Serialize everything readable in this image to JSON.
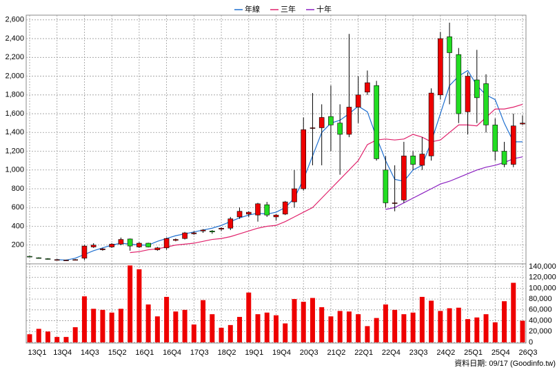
{
  "chart_data": {
    "type": "candlestick",
    "legend": [
      "年線",
      "三年",
      "十年"
    ],
    "footer": "資料日期: 09/17 (Goodinfo.tw)",
    "categories": [
      "13Q1",
      null,
      null,
      "13Q4",
      null,
      null,
      "14Q3",
      null,
      null,
      "15Q2",
      null,
      null,
      "16Q1",
      null,
      null,
      "16Q4",
      null,
      null,
      "17Q3",
      null,
      null,
      "18Q2",
      null,
      null,
      "19Q1",
      null,
      null,
      "19Q4",
      null,
      null,
      "20Q3",
      null,
      null,
      "21Q2",
      null,
      null,
      "22Q1",
      null,
      null,
      "22Q4",
      null,
      null,
      "23Q3",
      null,
      null,
      "24Q2",
      null,
      null,
      "25Q1",
      null,
      null,
      "25Q4",
      null,
      null,
      "26Q3"
    ],
    "open": [
      80,
      65,
      55,
      45,
      40,
      45,
      60,
      180,
      150,
      180,
      210,
      265,
      180,
      220,
      150,
      170,
      250,
      270,
      320,
      350,
      350,
      370,
      380,
      500,
      530,
      520,
      630,
      500,
      530,
      660,
      800,
      1450,
      1450,
      1570,
      1500,
      1380,
      1670,
      1830,
      1900,
      1000,
      650,
      680,
      1150,
      1050,
      1150,
      1800,
      2420,
      2230,
      1620,
      1960,
      1920,
      1480,
      1200,
      1060,
      1490
    ],
    "high": [
      85,
      70,
      60,
      50,
      45,
      50,
      200,
      220,
      170,
      220,
      280,
      270,
      230,
      225,
      180,
      280,
      270,
      340,
      345,
      370,
      360,
      390,
      500,
      600,
      560,
      650,
      660,
      530,
      670,
      1000,
      1560,
      1820,
      1700,
      1900,
      1700,
      2450,
      2000,
      2060,
      1950,
      1150,
      1050,
      1300,
      1200,
      1350,
      1870,
      2470,
      2570,
      2300,
      2040,
      2280,
      2020,
      1550,
      1300,
      1600,
      1580
    ],
    "low": [
      70,
      55,
      45,
      40,
      35,
      40,
      40,
      170,
      140,
      170,
      200,
      140,
      170,
      175,
      140,
      150,
      240,
      260,
      310,
      330,
      320,
      350,
      360,
      480,
      500,
      450,
      500,
      460,
      520,
      600,
      780,
      1050,
      1050,
      1200,
      950,
      1350,
      1500,
      1800,
      1100,
      600,
      560,
      650,
      1000,
      1000,
      1100,
      1750,
      1700,
      1500,
      1380,
      1500,
      1400,
      1100,
      1030,
      1030,
      1480
    ],
    "close": [
      75,
      60,
      50,
      45,
      40,
      45,
      190,
      200,
      160,
      210,
      260,
      190,
      220,
      180,
      170,
      270,
      260,
      330,
      330,
      360,
      340,
      380,
      480,
      560,
      550,
      640,
      520,
      520,
      660,
      800,
      1430,
      1450,
      1560,
      1480,
      1380,
      1670,
      1800,
      1930,
      1120,
      650,
      650,
      1150,
      1060,
      1170,
      1820,
      2400,
      2250,
      1600,
      2000,
      1770,
      1480,
      1200,
      1060,
      1470,
      1500
    ],
    "up_color": "#ee0000",
    "down_color": "#22dd22",
    "series": [
      {
        "name": "年線",
        "color": "#1e6fd0",
        "values": [
          null,
          null,
          null,
          45,
          40,
          60,
          100,
          140,
          170,
          200,
          220,
          210,
          200,
          200,
          240,
          270,
          300,
          320,
          340,
          360,
          380,
          410,
          450,
          490,
          520,
          540,
          530,
          550,
          600,
          700,
          900,
          1150,
          1400,
          1500,
          1530,
          1600,
          1680,
          1620,
          1350,
          1100,
          900,
          880,
          1000,
          1050,
          1300,
          1600,
          1900,
          2000,
          2060,
          1900,
          1800,
          1750,
          1500,
          1300,
          1300
        ]
      },
      {
        "name": "三年",
        "color": "#e0206a",
        "values": [
          null,
          null,
          null,
          null,
          null,
          null,
          null,
          null,
          null,
          null,
          null,
          120,
          130,
          150,
          160,
          180,
          200,
          210,
          220,
          240,
          260,
          270,
          290,
          320,
          350,
          380,
          400,
          410,
          450,
          500,
          550,
          600,
          700,
          800,
          900,
          1000,
          1100,
          1270,
          1320,
          1330,
          1320,
          1330,
          1380,
          1350,
          1300,
          1320,
          1400,
          1480,
          1480,
          1470,
          1560,
          1650,
          1650,
          1670,
          1700
        ]
      },
      {
        "name": "十年",
        "color": "#8a1fc0",
        "values": [
          null,
          null,
          null,
          null,
          null,
          null,
          null,
          null,
          null,
          null,
          null,
          null,
          null,
          null,
          null,
          null,
          null,
          null,
          null,
          null,
          null,
          null,
          null,
          null,
          null,
          null,
          null,
          null,
          null,
          null,
          null,
          null,
          null,
          null,
          null,
          null,
          null,
          null,
          null,
          580,
          600,
          650,
          700,
          750,
          800,
          850,
          880,
          920,
          960,
          1000,
          1030,
          1050,
          1080,
          1120,
          1140
        ]
      }
    ],
    "ylim": [
      0,
      2650
    ],
    "yticks": [
      200,
      400,
      600,
      800,
      {
        "value": 1000,
        "label": "1,000"
      },
      {
        "value": 1200,
        "label": "1,200"
      },
      {
        "value": 1400,
        "label": "1,400"
      },
      {
        "value": 1600,
        "label": "1,600"
      },
      {
        "value": 1800,
        "label": "1,800"
      },
      {
        "value": 2000,
        "label": "2,000"
      },
      {
        "value": 2200,
        "label": "2,200"
      },
      {
        "value": 2400,
        "label": "2,400"
      },
      {
        "value": 2600,
        "label": "2,600"
      }
    ],
    "volume": {
      "color": "#ee0000",
      "values": [
        15000,
        25000,
        20000,
        10000,
        10000,
        28000,
        85000,
        62000,
        60000,
        55000,
        62000,
        142000,
        135000,
        70000,
        48000,
        84000,
        57000,
        60000,
        33000,
        78000,
        52000,
        27000,
        32000,
        47000,
        92000,
        52000,
        55000,
        50000,
        35000,
        80000,
        75000,
        82000,
        65000,
        48000,
        58000,
        57000,
        52000,
        30000,
        45000,
        70000,
        60000,
        52000,
        55000,
        84000,
        77000,
        58000,
        63000,
        64000,
        43000,
        46000,
        52000,
        37000,
        76000,
        110000,
        40000
      ],
      "ylim": [
        0,
        145000
      ],
      "yticks": [
        0,
        {
          "value": 20000,
          "label": "20,000"
        },
        {
          "value": 40000,
          "label": "40,000"
        },
        {
          "value": 60000,
          "label": "60,000"
        },
        {
          "value": 80000,
          "label": "80,000"
        },
        {
          "value": 100000,
          "label": "100,000"
        },
        {
          "value": 120000,
          "label": "120,000"
        },
        {
          "value": 140000,
          "label": "140,000"
        }
      ]
    },
    "grid": true
  }
}
